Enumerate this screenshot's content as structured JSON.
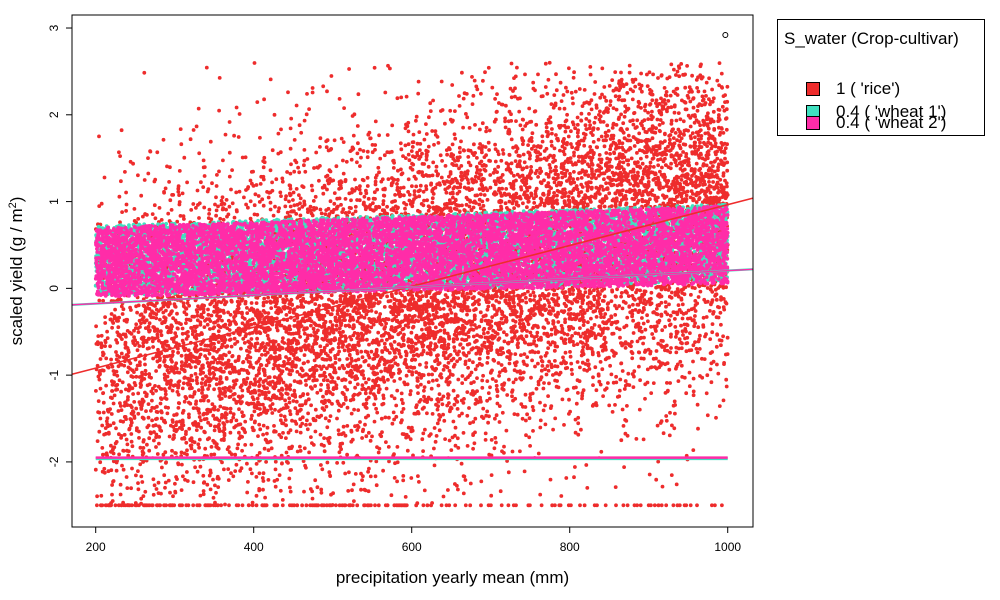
{
  "chart_data": {
    "type": "scatter",
    "title": "",
    "xlabel": "precipitation yearly mean (mm)",
    "ylabel_main": "scaled yield (g / m",
    "ylabel_sup": "2",
    "ylabel_close": ")",
    "xlim": [
      170,
      1032
    ],
    "ylim": [
      -2.75,
      3.15
    ],
    "x_ticks": [
      200,
      400,
      600,
      800,
      1000
    ],
    "x_tick_labels": [
      "200",
      "400",
      "600",
      "800",
      "1000"
    ],
    "y_ticks": [
      -2,
      -1,
      0,
      1,
      2,
      3
    ],
    "y_tick_labels": [
      "-2",
      "-1",
      "0",
      "1",
      "2",
      "3"
    ],
    "grid": false,
    "legend": {
      "title": "S_water (Crop-cultivar)",
      "position": "outside-right-top",
      "entries": [
        "1 ( 'rice')",
        "0.4 ( 'wheat 1')",
        "0.4 ( 'wheat 2')"
      ]
    },
    "series": [
      {
        "name": "1 ( 'rice')",
        "color": "#ee2c2c",
        "x_range": [
          200,
          1000
        ],
        "y_lower_bound": -2.5,
        "density": "dense points spanning roughly -2.5 to 2.5, denser near the trend line",
        "trend_line": {
          "x": [
            170,
            1032
          ],
          "y": [
            -0.99,
            1.04
          ]
        }
      },
      {
        "name": "0.4 ( 'wheat 1')",
        "color": "#40e0c0",
        "x_range": [
          200,
          1000
        ],
        "band": {
          "x": [
            200,
            1000
          ],
          "y_lower": [
            -0.1,
            0.05
          ],
          "y_upper": [
            0.7,
            0.95
          ]
        },
        "floor_line_y": -1.95,
        "trend_line": {
          "x": [
            170,
            1032
          ],
          "y": [
            -0.19,
            0.22
          ]
        }
      },
      {
        "name": "0.4 ( 'wheat 2')",
        "color": "#ff2ca8",
        "x_range": [
          200,
          1000
        ],
        "band": {
          "x": [
            200,
            1000
          ],
          "y_lower": [
            -0.1,
            0.05
          ],
          "y_upper": [
            0.7,
            0.95
          ]
        },
        "floor_line_y": -1.95,
        "trend_line": {
          "x": [
            170,
            1032
          ],
          "y": [
            -0.19,
            0.22
          ]
        }
      }
    ],
    "annotations": [
      {
        "type": "open-circle",
        "x": 997,
        "y": 2.92
      }
    ]
  }
}
